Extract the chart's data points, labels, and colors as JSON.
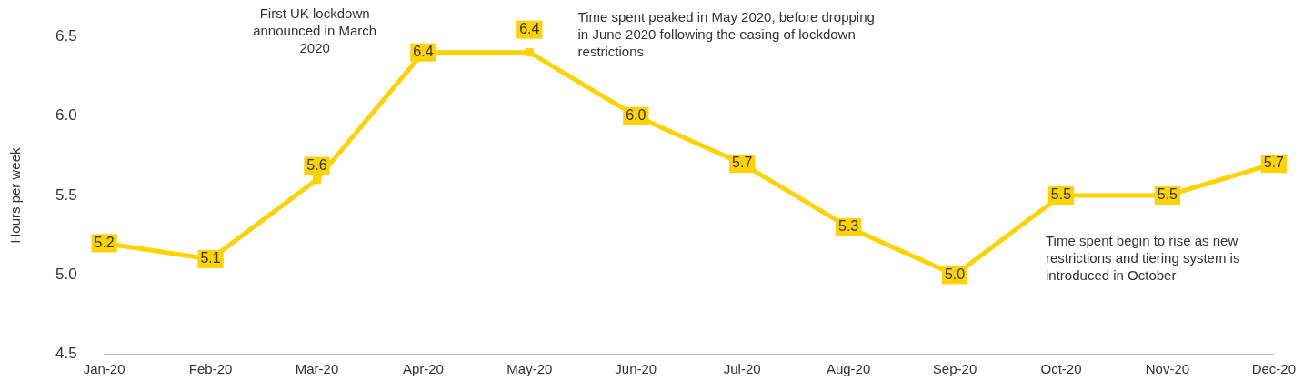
{
  "chart_data": {
    "type": "line",
    "ylabel": "Hours per week",
    "categories": [
      "Jan-20",
      "Feb-20",
      "Mar-20",
      "Apr-20",
      "May-20",
      "Jun-20",
      "Jul-20",
      "Aug-20",
      "Sep-20",
      "Oct-20",
      "Nov-20",
      "Dec-20"
    ],
    "values": [
      5.2,
      5.1,
      5.6,
      6.4,
      6.4,
      6.0,
      5.7,
      5.3,
      5.0,
      5.5,
      5.5,
      5.7
    ],
    "value_labels": [
      "5.2",
      "5.1",
      "5.6",
      "6.4",
      "6.4",
      "6.0",
      "5.7",
      "5.3",
      "5.0",
      "5.5",
      "5.5",
      "5.7"
    ],
    "color": "#ffd200",
    "ylim": [
      4.5,
      6.5
    ],
    "yticks": [
      4.5,
      {
        "value": 5,
        "label": "5.0"
      },
      5.5,
      {
        "value": 6,
        "label": "6.0"
      },
      6.5
    ],
    "grid": false,
    "legend": false,
    "marker": "square",
    "line_style": "solid",
    "annotations": [
      "First UK lockdown announced in March 2020",
      "Time spent peaked in May 2020, before dropping in June 2020 following the easing of lockdown restrictions",
      "Time spent begin to rise as new restrictions and tiering system is introduced in October"
    ]
  }
}
